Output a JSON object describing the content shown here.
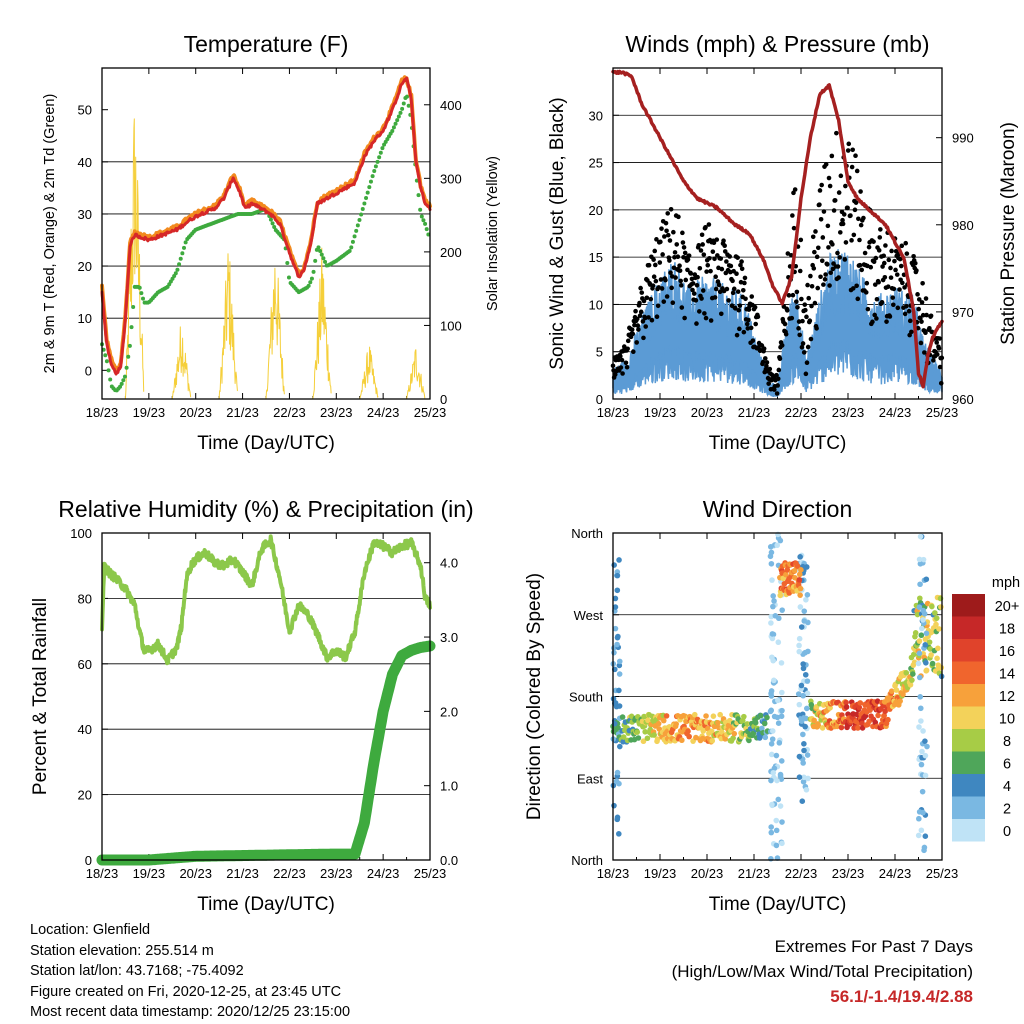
{
  "colors": {
    "temp_2m": "#d62728",
    "temp_9m": "#f28a1e",
    "dewpoint": "#3eaa3e",
    "solar": "#f5cf3a",
    "wind": "#5b9bd5",
    "gust": "#000000",
    "pressure": "#a52020",
    "rh": "#8cc84b",
    "rain": "#3eaa3e",
    "extremes_value": "#c62828"
  },
  "speed_scale": {
    "unit": "mph",
    "labels": [
      "20+",
      "18",
      "16",
      "14",
      "12",
      "10",
      "8",
      "6",
      "4",
      "2",
      "0"
    ],
    "colors": [
      "#9e1b1b",
      "#c62828",
      "#e0432b",
      "#f0652d",
      "#f7a13b",
      "#f3d25a",
      "#a7cc46",
      "#4fa65a",
      "#3f87c0",
      "#7ab8e2",
      "#bfe3f6"
    ]
  },
  "chart_data": [
    {
      "type": "line",
      "title": "Temperature (F)",
      "xlabel": "Time (Day/UTC)",
      "ylabel": "2m & 9m T (Red, Orange) & 2m Td (Green)",
      "y2label": "Solar Insolation (Yellow)",
      "x_ticks": [
        "18/23",
        "19/23",
        "20/23",
        "21/23",
        "22/23",
        "23/23",
        "24/23",
        "25/23"
      ],
      "xlim": [
        0,
        7
      ],
      "ylim": [
        -5.5,
        58
      ],
      "y_ticks": [
        0,
        10,
        20,
        30,
        40,
        50
      ],
      "y2lim": [
        0,
        450
      ],
      "y2_ticks": [
        0,
        100,
        200,
        300,
        400
      ],
      "grid": true,
      "series": [
        {
          "values_x": [
            0,
            0.05,
            0.1,
            0.2,
            0.3,
            0.4,
            0.5,
            0.6,
            0.7,
            1.0,
            1.3,
            1.6,
            1.9,
            2.1,
            2.4,
            2.6,
            2.8,
            2.95,
            3.05,
            3.2,
            3.4,
            3.6,
            3.8,
            3.95,
            4.1,
            4.2,
            4.3,
            4.45,
            4.6,
            4.8,
            5.0,
            5.2,
            5.4,
            5.6,
            5.8,
            6.0,
            6.2,
            6.4,
            6.5,
            6.6,
            6.7,
            6.8,
            6.9,
            7.0
          ],
          "values_y": [
            15,
            10,
            5,
            1,
            -0.5,
            0.5,
            10,
            24,
            26,
            25,
            26,
            27,
            29,
            30,
            31,
            33,
            37,
            34,
            31,
            32,
            31,
            30,
            28,
            24,
            20,
            18,
            19,
            24,
            32,
            33,
            34,
            35,
            36,
            41,
            44,
            46,
            50,
            55,
            56,
            52,
            40,
            35,
            32,
            31
          ]
        },
        {
          "values_x": [
            0,
            0.05,
            0.1,
            0.2,
            0.3,
            0.4,
            0.5,
            0.6,
            0.7,
            1.0,
            1.3,
            1.6,
            1.9,
            2.1,
            2.4,
            2.6,
            2.8,
            2.95,
            3.05,
            3.2,
            3.4,
            3.6,
            3.8,
            3.95,
            4.1,
            4.2,
            4.3,
            4.45,
            4.6,
            4.8,
            5.0,
            5.2,
            5.4,
            5.6,
            5.8,
            6.0,
            6.2,
            6.4,
            6.5,
            6.6,
            6.7,
            6.8,
            6.9,
            7.0
          ],
          "values_y": [
            16,
            11,
            6,
            2,
            0,
            1,
            10.5,
            24.5,
            26.5,
            25.5,
            26.5,
            27.5,
            29.5,
            30.5,
            31.5,
            33.5,
            37.5,
            34.5,
            31.5,
            32.5,
            31.5,
            30.5,
            28.5,
            24.5,
            20.5,
            18.5,
            19.5,
            24.5,
            32.5,
            33.5,
            34.5,
            35.5,
            36.5,
            41.5,
            44.5,
            46.5,
            50.5,
            55.5,
            56.1,
            52.5,
            40.5,
            35.5,
            32.5,
            31.5
          ]
        },
        {
          "values_x": [
            0,
            0.1,
            0.2,
            0.3,
            0.4,
            0.5,
            0.6,
            0.7,
            0.8,
            0.9,
            1.0,
            1.2,
            1.4,
            1.6,
            1.8,
            2.0,
            2.3,
            2.6,
            2.9,
            3.2,
            3.5,
            3.7,
            3.9,
            4.0,
            4.2,
            4.4,
            4.5,
            4.6,
            4.8,
            5.0,
            5.3,
            5.6,
            5.8,
            6.0,
            6.2,
            6.4,
            6.5,
            6.6,
            6.7,
            6.8,
            6.9,
            7.0
          ],
          "values_y": [
            5,
            2,
            -3,
            -4,
            -3,
            -1,
            5,
            16,
            16,
            13,
            13,
            15,
            16,
            19,
            25,
            27,
            28,
            29,
            30,
            30,
            31,
            27,
            25,
            17,
            15,
            16,
            18,
            24,
            20,
            21,
            23,
            32,
            38,
            43,
            46,
            50,
            53,
            48,
            38,
            30,
            28,
            25
          ]
        }
      ],
      "solar_days": [
        0.7,
        1.7,
        2.7,
        3.7,
        4.7,
        5.7,
        6.7
      ],
      "solar_peaks": [
        450,
        120,
        230,
        240,
        220,
        80,
        80
      ]
    },
    {
      "type": "scatter",
      "title": "Winds (mph) & Pressure (mb)",
      "xlabel": "Time (Day/UTC)",
      "ylabel": "Sonic Wind & Gust (Blue, Black)",
      "y2label": "Station Pressure (Maroon)",
      "x_ticks": [
        "18/23",
        "19/23",
        "20/23",
        "21/23",
        "22/23",
        "23/23",
        "24/23",
        "25/23"
      ],
      "xlim": [
        0,
        7
      ],
      "ylim": [
        0,
        35
      ],
      "y_ticks": [
        0,
        5,
        10,
        15,
        20,
        25,
        30
      ],
      "y2lim": [
        960,
        998
      ],
      "y2_ticks": [
        960,
        970,
        980,
        990
      ],
      "grid": true,
      "wind_envelope_x": [
        0,
        0.3,
        0.6,
        1.0,
        1.3,
        1.6,
        2.0,
        2.4,
        2.8,
        3.1,
        3.35,
        3.5,
        3.7,
        3.9,
        4.1,
        4.3,
        4.6,
        5.0,
        5.3,
        5.6,
        6.0,
        6.4,
        6.6,
        6.8,
        7.0
      ],
      "wind_envelope_y": [
        3,
        4,
        8,
        12,
        14,
        11,
        12,
        11,
        10,
        5,
        2,
        1,
        8,
        12,
        4,
        8,
        14,
        15,
        12,
        10,
        11,
        10,
        6,
        4,
        3
      ],
      "gust_envelope_y": [
        4,
        6,
        12,
        18,
        20,
        16,
        18,
        17,
        15,
        8,
        3,
        2,
        14,
        25,
        10,
        20,
        28,
        30,
        22,
        18,
        17,
        15,
        12,
        8,
        6
      ],
      "pressure_x": [
        0,
        0.2,
        0.4,
        0.6,
        0.9,
        1.2,
        1.5,
        1.8,
        2.2,
        2.6,
        2.9,
        3.2,
        3.4,
        3.6,
        3.8,
        4.0,
        4.2,
        4.4,
        4.6,
        4.8,
        5.0,
        5.2,
        5.4,
        5.6,
        5.8,
        6.0,
        6.2,
        6.4,
        6.5,
        6.6,
        6.7,
        6.8,
        6.9,
        7.0
      ],
      "pressure_y": [
        997.5,
        997.5,
        997,
        994,
        991,
        988,
        985,
        983,
        982,
        980,
        979,
        976,
        973,
        971,
        974,
        983,
        990,
        995,
        996,
        992,
        985,
        983,
        982,
        981,
        980,
        978,
        976,
        970,
        963,
        961.5,
        965,
        967,
        968,
        969
      ]
    },
    {
      "type": "line",
      "title": "Relative Humidity (%) & Precipitation (in)",
      "xlabel": "Time (Day/UTC)",
      "ylabel": "Percent & Total Rainfall",
      "x_ticks": [
        "18/23",
        "19/23",
        "20/23",
        "21/23",
        "22/23",
        "23/23",
        "24/23",
        "25/23"
      ],
      "xlim": [
        0,
        7
      ],
      "ylim": [
        0,
        100
      ],
      "y_ticks": [
        0,
        20,
        40,
        60,
        80,
        100
      ],
      "y2lim": [
        0,
        4.4
      ],
      "y2_ticks": [
        "0.0",
        "1.0",
        "2.0",
        "3.0",
        "4.0"
      ],
      "grid": true,
      "series": [
        {
          "name": "",
          "x": [
            0,
            0.05,
            0.15,
            0.3,
            0.5,
            0.7,
            0.8,
            0.9,
            1.0,
            1.2,
            1.4,
            1.5,
            1.6,
            1.7,
            1.8,
            1.9,
            2.0,
            2.2,
            2.4,
            2.6,
            2.8,
            3.0,
            3.2,
            3.4,
            3.6,
            3.8,
            4.0,
            4.2,
            4.4,
            4.6,
            4.8,
            5.0,
            5.2,
            5.4,
            5.6,
            5.8,
            6.0,
            6.2,
            6.4,
            6.6,
            6.8,
            6.9,
            7.0
          ],
          "y": [
            71,
            90,
            88,
            86,
            83,
            78,
            70,
            64,
            64,
            66,
            61,
            63,
            65,
            72,
            86,
            90,
            92,
            94,
            91,
            90,
            92,
            88,
            84,
            95,
            98,
            86,
            70,
            78,
            75,
            69,
            62,
            64,
            62,
            70,
            88,
            97,
            96,
            94,
            96,
            97,
            90,
            80,
            78
          ]
        },
        {
          "name": "",
          "x": [
            0,
            1.0,
            2.0,
            3.0,
            4.0,
            5.0,
            5.4,
            5.6,
            5.8,
            6.0,
            6.2,
            6.4,
            6.6,
            6.8,
            7.0
          ],
          "y": [
            0.0,
            0.0,
            0.05,
            0.06,
            0.07,
            0.08,
            0.08,
            0.5,
            1.3,
            2.0,
            2.5,
            2.75,
            2.82,
            2.86,
            2.88
          ]
        }
      ]
    },
    {
      "type": "scatter",
      "title": "Wind Direction",
      "xlabel": "Time (Day/UTC)",
      "ylabel": "Direction (Colored By Speed)",
      "x_ticks": [
        "18/23",
        "19/23",
        "20/23",
        "21/23",
        "22/23",
        "23/23",
        "24/23",
        "25/23"
      ],
      "xlim": [
        0,
        7
      ],
      "ylim": [
        0,
        360
      ],
      "y_tick_labels": [
        "North",
        "East",
        "South",
        "West",
        "North"
      ],
      "y_ticks": [
        0,
        90,
        180,
        270,
        360
      ],
      "grid": true
    }
  ],
  "info": {
    "location": "Location: Glenfield",
    "elevation": "Station elevation: 255.514 m",
    "latlon": "Station lat/lon: 43.7168; -75.4092",
    "created": "Figure created on Fri, 2020-12-25, at 23:45 UTC",
    "recent": "Most recent data timestamp: 2020/12/25 23:15:00"
  },
  "extremes": {
    "line1": "Extremes For Past 7 Days",
    "line2": "(High/Low/Max Wind/Total Precipitation)",
    "values": "56.1/-1.4/19.4/2.88"
  }
}
